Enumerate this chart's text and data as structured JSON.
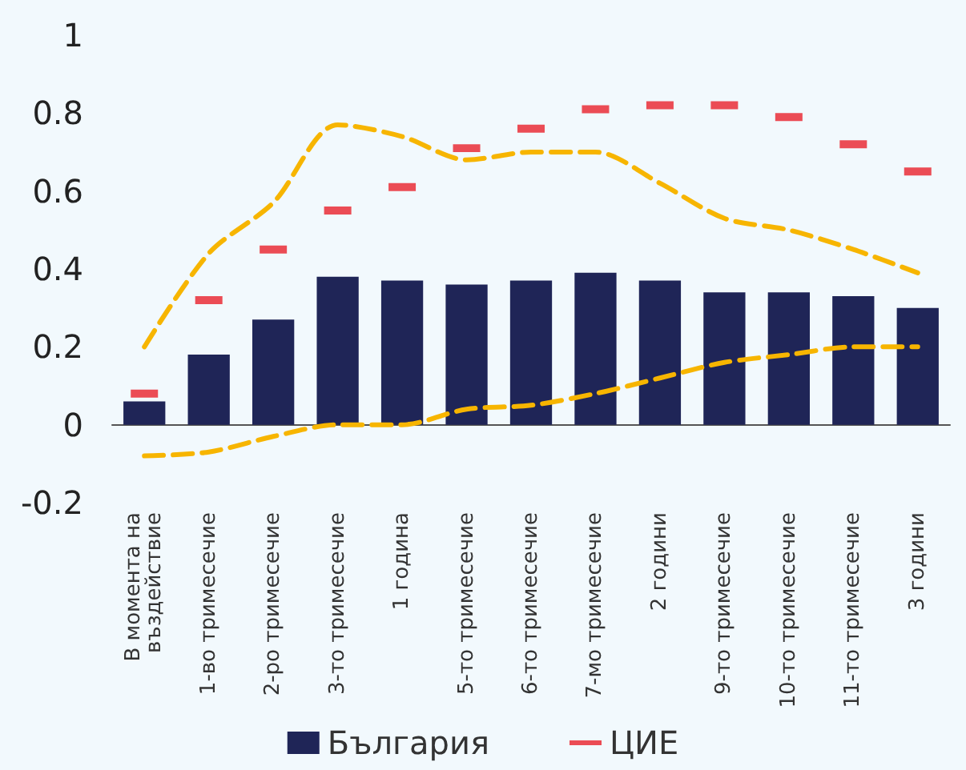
{
  "chart_data": {
    "type": "bar",
    "categories": [
      "В момента на въздействие",
      "1-во тримесечие",
      "2-ро тримесечие",
      "3-то тримесечие",
      "1 година",
      "5-то тримесечие",
      "6-то тримесечие",
      "7-мо тримесечие",
      "2 години",
      "9-то тримесечие",
      "10-то тримесечие",
      "11-то тримесечие",
      "3 години"
    ],
    "series": [
      {
        "name": "България",
        "color": "#1f2557",
        "values": [
          0.06,
          0.18,
          0.27,
          0.38,
          0.37,
          0.36,
          0.37,
          0.39,
          0.37,
          0.34,
          0.34,
          0.33,
          0.3
        ]
      },
      {
        "name": "ЦИЕ",
        "type": "scatter",
        "color": "#e8202a",
        "values": [
          0.08,
          0.32,
          0.45,
          0.55,
          0.61,
          0.71,
          0.76,
          0.81,
          0.82,
          0.82,
          0.79,
          0.72,
          0.65
        ]
      },
      {
        "type": "line",
        "color": "#f7b500",
        "line_style": "dashed",
        "marker": "none",
        "values": [
          0.2,
          0.44,
          0.57,
          0.77,
          0.74,
          0.68,
          0.7,
          0.7,
          0.62,
          0.53,
          0.5,
          0.45,
          0.39
        ]
      },
      {
        "type": "line",
        "color": "#f7b500",
        "line_style": "dashed",
        "marker": "none",
        "values": [
          -0.08,
          -0.07,
          -0.03,
          0.0,
          0.0,
          0.04,
          0.05,
          0.08,
          0.12,
          0.16,
          0.18,
          0.2,
          0.2
        ]
      }
    ],
    "ylim": [
      -0.2,
      1
    ],
    "yticks": [
      -0.2,
      0,
      0.2,
      0.4,
      0.6,
      0.8,
      1
    ],
    "legend": "bottom"
  }
}
